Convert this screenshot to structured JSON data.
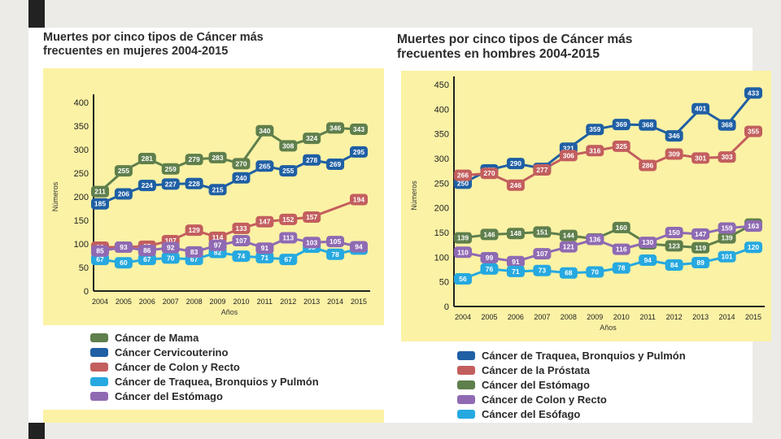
{
  "chart_data": [
    {
      "type": "line",
      "title": "Muertes por cinco tipos de Cáncer más\nfrecuentes en mujeres 2004-2015",
      "ylabel": "Números",
      "xlabel": "Años",
      "ylim": [
        0,
        400
      ],
      "yticks": [
        0,
        50,
        100,
        150,
        200,
        250,
        300,
        350,
        400
      ],
      "x": [
        "2004",
        "2005",
        "2006",
        "2007",
        "2008",
        "2009",
        "2010",
        "2011",
        "2012",
        "2013",
        "2014",
        "2015"
      ],
      "series": [
        {
          "name": "Cáncer de Mama",
          "color": "#5f7f4c",
          "values": [
            211,
            255,
            281,
            259,
            279,
            283,
            270,
            340,
            308,
            324,
            346,
            343
          ]
        },
        {
          "name": "Cáncer Cervicouterino",
          "color": "#1f5fa4",
          "values": [
            185,
            206,
            224,
            227,
            228,
            215,
            240,
            265,
            255,
            278,
            269,
            295
          ]
        },
        {
          "name": "Cáncer de Colon y Recto",
          "color": "#c35e5e",
          "values": [
            93,
            93,
            95,
            107,
            129,
            114,
            133,
            147,
            152,
            157,
            null,
            194
          ]
        },
        {
          "name": "Cáncer de Traquea, Bronquios y Pulmón",
          "color": "#26a9e0",
          "values": [
            67,
            60,
            67,
            70,
            67,
            82,
            74,
            71,
            67,
            93,
            78,
            89
          ]
        },
        {
          "name": "Cáncer del Estómago",
          "color": "#8f6ab3",
          "values": [
            85,
            93,
            86,
            92,
            83,
            97,
            107,
            91,
            113,
            103,
            105,
            94
          ]
        }
      ]
    },
    {
      "type": "line",
      "title": "Muertes por cinco tipos de Cáncer más\nfrecuentes en hombres 2004-2015",
      "ylabel": "Números",
      "xlabel": "Años",
      "ylim": [
        0,
        450
      ],
      "yticks": [
        0,
        50,
        100,
        150,
        200,
        250,
        300,
        350,
        400,
        450
      ],
      "x": [
        "2004",
        "2005",
        "2006",
        "2007",
        "2008",
        "2009",
        "2010",
        "2011",
        "2012",
        "2013",
        "2014",
        "2015"
      ],
      "series": [
        {
          "name": "Cáncer de Traquea, Bronquios y Pulmón",
          "color": "#1f5fa4",
          "values": [
            250,
            277,
            290,
            280,
            321,
            359,
            369,
            368,
            346,
            401,
            368,
            433
          ]
        },
        {
          "name": "Cáncer de la Próstata",
          "color": "#c35e5e",
          "values": [
            266,
            270,
            246,
            277,
            306,
            316,
            325,
            286,
            309,
            301,
            303,
            355
          ]
        },
        {
          "name": "Cáncer del Estómago",
          "color": "#5f7f4c",
          "values": [
            139,
            146,
            148,
            151,
            144,
            137,
            160,
            127,
            123,
            119,
            139,
            167
          ]
        },
        {
          "name": "Cáncer de Colon y Recto",
          "color": "#8f6ab3",
          "values": [
            110,
            99,
            91,
            107,
            121,
            136,
            116,
            130,
            150,
            147,
            159,
            163
          ]
        },
        {
          "name": "Cáncer del Esófago",
          "color": "#26a9e0",
          "values": [
            56,
            76,
            71,
            73,
            68,
            70,
            78,
            94,
            84,
            89,
            101,
            120
          ]
        }
      ]
    }
  ]
}
